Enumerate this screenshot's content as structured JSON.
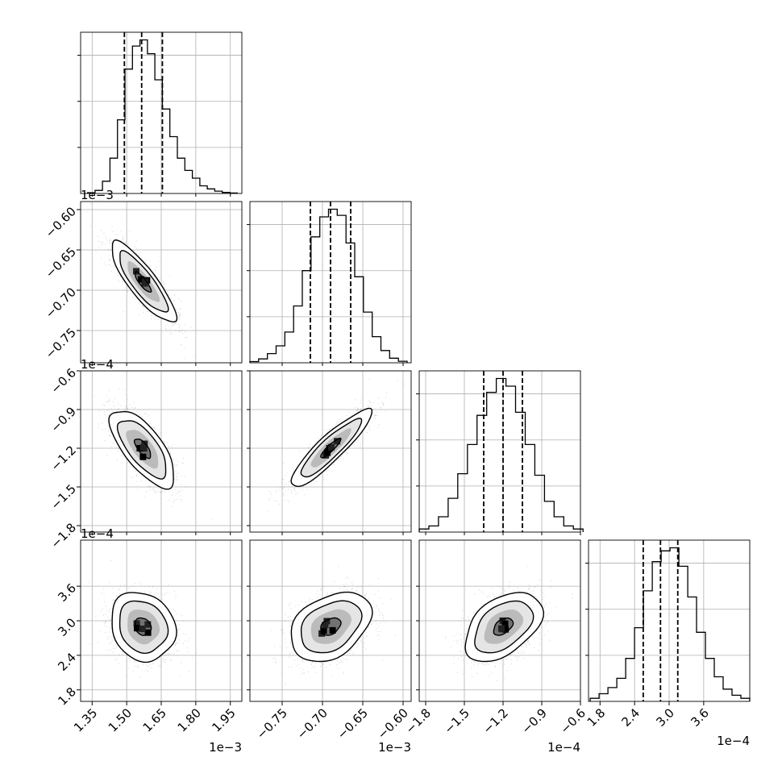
{
  "chart_data": {
    "type": "corner",
    "title": "",
    "params": [
      {
        "range": [
          1.3,
          2.0
        ],
        "ticks": [
          "1.35",
          "1.50",
          "1.65",
          "1.80",
          "1.95"
        ],
        "ticks_values": [
          1.35,
          1.5,
          1.65,
          1.8,
          1.95
        ],
        "offset_text": "1e−3",
        "quantiles": [
          1.49,
          1.565,
          1.655
        ],
        "mean": 1.57,
        "sd": 0.07
      },
      {
        "range": [
          -0.79,
          -0.59
        ],
        "ticks": [
          "−0.75",
          "−0.70",
          "−0.65",
          "−0.60"
        ],
        "ticks_values": [
          -0.75,
          -0.7,
          -0.65,
          -0.6
        ],
        "offset_text": "1e−3",
        "quantiles": [
          -0.715,
          -0.69,
          -0.665
        ],
        "mean": -0.69,
        "sd": 0.025
      },
      {
        "range": [
          -1.85,
          -0.6
        ],
        "ticks": [
          "−1.8",
          "−1.5",
          "−1.2",
          "−0.9",
          "−0.6"
        ],
        "ticks_values": [
          -1.8,
          -1.5,
          -1.2,
          -0.9,
          -0.6
        ],
        "offset_text": "1e−4",
        "quantiles": [
          -1.35,
          -1.2,
          -1.05
        ],
        "mean": -1.2,
        "sd": 0.15
      },
      {
        "range": [
          1.6,
          4.4
        ],
        "ticks": [
          "1.8",
          "2.4",
          "3.0",
          "3.6"
        ],
        "ticks_values": [
          1.8,
          2.4,
          3.0,
          3.6
        ],
        "offset_text": "1e−4",
        "quantiles": [
          2.55,
          2.85,
          3.15
        ],
        "mean": 2.9,
        "sd": 0.3
      }
    ],
    "correlations": [
      [
        0,
        1,
        -0.85
      ],
      [
        0,
        2,
        -0.7
      ],
      [
        1,
        2,
        0.9
      ],
      [
        0,
        3,
        -0.15
      ],
      [
        1,
        3,
        0.35
      ],
      [
        2,
        3,
        0.45
      ]
    ],
    "histograms": [
      [
        0.005,
        0.02,
        0.08,
        0.23,
        0.48,
        0.81,
        0.96,
        1.0,
        0.91,
        0.74,
        0.55,
        0.37,
        0.23,
        0.15,
        0.1,
        0.05,
        0.03,
        0.015,
        0.007,
        0.003
      ],
      [
        0.008,
        0.025,
        0.06,
        0.11,
        0.2,
        0.37,
        0.6,
        0.82,
        0.95,
        1.0,
        0.96,
        0.78,
        0.56,
        0.33,
        0.17,
        0.08,
        0.03,
        0.01
      ],
      [
        0.02,
        0.04,
        0.1,
        0.22,
        0.38,
        0.57,
        0.76,
        0.91,
        1.0,
        0.95,
        0.78,
        0.57,
        0.37,
        0.2,
        0.1,
        0.04,
        0.02
      ],
      [
        0.02,
        0.05,
        0.09,
        0.15,
        0.28,
        0.48,
        0.72,
        0.91,
        0.98,
        1.0,
        0.88,
        0.68,
        0.45,
        0.28,
        0.16,
        0.08,
        0.04,
        0.02
      ]
    ],
    "grid": true,
    "legend": "none"
  }
}
